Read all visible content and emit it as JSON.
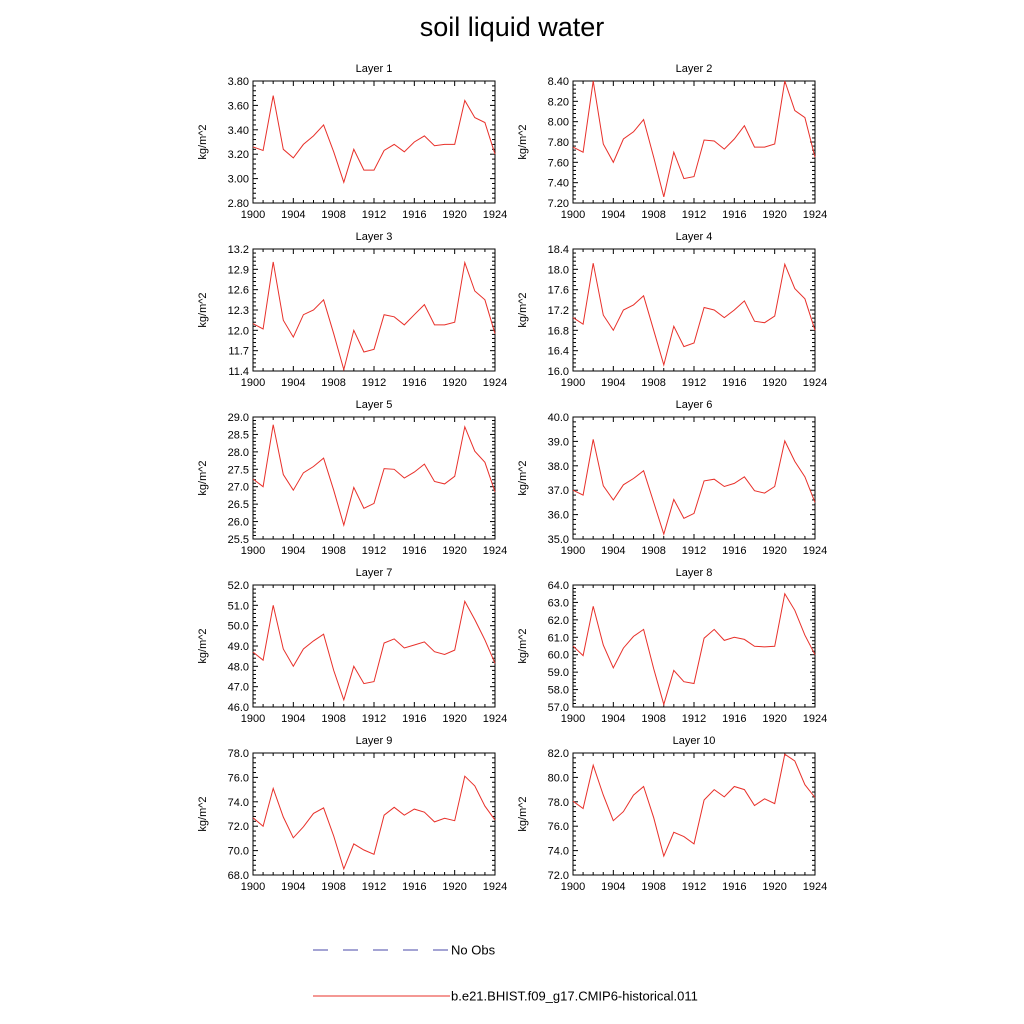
{
  "title": "soil liquid water",
  "legend": {
    "items": [
      {
        "label": "No Obs",
        "style": "dashed",
        "color": "#4a4aa8"
      },
      {
        "label": "b.e21.BHIST.f09_g17.CMIP6-historical.011",
        "style": "solid",
        "color": "#e8302a"
      }
    ]
  },
  "chart_data": [
    {
      "type": "line",
      "title": "Layer 1",
      "ylabel": "kg/m^2",
      "xlim": [
        1900,
        1924
      ],
      "x_ticks": [
        1900,
        1904,
        1908,
        1912,
        1916,
        1920,
        1924
      ],
      "ylim": [
        2.8,
        3.8
      ],
      "y_ticks": [
        "2.80",
        "3.00",
        "3.20",
        "3.40",
        "3.60",
        "3.80"
      ],
      "series": [
        {
          "name": "b.e21.BHIST.f09_g17.CMIP6-historical.011",
          "color": "#e8302a",
          "x": [
            1900,
            1901,
            1902,
            1903,
            1904,
            1905,
            1906,
            1907,
            1908,
            1909,
            1910,
            1911,
            1912,
            1913,
            1914,
            1915,
            1916,
            1917,
            1918,
            1919,
            1920,
            1921,
            1922,
            1923,
            1924
          ],
          "values": [
            3.26,
            3.23,
            3.68,
            3.24,
            3.17,
            3.28,
            3.35,
            3.44,
            3.22,
            2.97,
            3.24,
            3.07,
            3.07,
            3.23,
            3.28,
            3.22,
            3.3,
            3.35,
            3.27,
            3.28,
            3.28,
            3.64,
            3.5,
            3.46,
            3.2
          ]
        }
      ]
    },
    {
      "type": "line",
      "title": "Layer 2",
      "ylabel": "kg/m^2",
      "xlim": [
        1900,
        1924
      ],
      "x_ticks": [
        1900,
        1904,
        1908,
        1912,
        1916,
        1920,
        1924
      ],
      "ylim": [
        7.2,
        8.4
      ],
      "y_ticks": [
        "7.20",
        "7.40",
        "7.60",
        "7.80",
        "8.00",
        "8.20",
        "8.40"
      ],
      "series": [
        {
          "name": "b.e21.BHIST.f09_g17.CMIP6-historical.011",
          "color": "#e8302a",
          "x": [
            1900,
            1901,
            1902,
            1903,
            1904,
            1905,
            1906,
            1907,
            1908,
            1909,
            1910,
            1911,
            1912,
            1913,
            1914,
            1915,
            1916,
            1917,
            1918,
            1919,
            1920,
            1921,
            1922,
            1923,
            1924
          ],
          "values": [
            7.75,
            7.7,
            8.4,
            7.78,
            7.6,
            7.83,
            7.9,
            8.02,
            7.65,
            7.26,
            7.7,
            7.44,
            7.46,
            7.82,
            7.81,
            7.73,
            7.83,
            7.96,
            7.75,
            7.75,
            7.78,
            8.4,
            8.11,
            8.04,
            7.65
          ]
        }
      ]
    },
    {
      "type": "line",
      "title": "Layer 3",
      "ylabel": "kg/m^2",
      "xlim": [
        1900,
        1924
      ],
      "x_ticks": [
        1900,
        1904,
        1908,
        1912,
        1916,
        1920,
        1924
      ],
      "ylim": [
        11.4,
        13.2
      ],
      "y_ticks": [
        "11.4",
        "11.7",
        "12.0",
        "12.3",
        "12.6",
        "12.9",
        "13.2"
      ],
      "series": [
        {
          "name": "b.e21.BHIST.f09_g17.CMIP6-historical.011",
          "color": "#e8302a",
          "x": [
            1900,
            1901,
            1902,
            1903,
            1904,
            1905,
            1906,
            1907,
            1908,
            1909,
            1910,
            1911,
            1912,
            1913,
            1914,
            1915,
            1916,
            1917,
            1918,
            1919,
            1920,
            1921,
            1922,
            1923,
            1924
          ],
          "values": [
            12.1,
            12.02,
            13.01,
            12.15,
            11.9,
            12.23,
            12.3,
            12.45,
            11.95,
            11.42,
            12.0,
            11.68,
            11.72,
            12.23,
            12.2,
            12.08,
            12.23,
            12.38,
            12.08,
            12.08,
            12.12,
            13.0,
            12.58,
            12.45,
            11.95
          ]
        }
      ]
    },
    {
      "type": "line",
      "title": "Layer 4",
      "ylabel": "kg/m^2",
      "xlim": [
        1900,
        1924
      ],
      "x_ticks": [
        1900,
        1904,
        1908,
        1912,
        1916,
        1920,
        1924
      ],
      "ylim": [
        16.0,
        18.4
      ],
      "y_ticks": [
        "16.0",
        "16.4",
        "16.8",
        "17.2",
        "17.6",
        "18.0",
        "18.4"
      ],
      "series": [
        {
          "name": "b.e21.BHIST.f09_g17.CMIP6-historical.011",
          "color": "#e8302a",
          "x": [
            1900,
            1901,
            1902,
            1903,
            1904,
            1905,
            1906,
            1907,
            1908,
            1909,
            1910,
            1911,
            1912,
            1913,
            1914,
            1915,
            1916,
            1917,
            1918,
            1919,
            1920,
            1921,
            1922,
            1923,
            1924
          ],
          "values": [
            17.05,
            16.92,
            18.12,
            17.1,
            16.8,
            17.2,
            17.3,
            17.48,
            16.8,
            16.12,
            16.88,
            16.48,
            16.55,
            17.25,
            17.2,
            17.05,
            17.2,
            17.38,
            16.98,
            16.95,
            17.08,
            18.1,
            17.62,
            17.42,
            16.8
          ]
        }
      ]
    },
    {
      "type": "line",
      "title": "Layer 5",
      "ylabel": "kg/m^2",
      "xlim": [
        1900,
        1924
      ],
      "x_ticks": [
        1900,
        1904,
        1908,
        1912,
        1916,
        1920,
        1924
      ],
      "ylim": [
        25.5,
        29.0
      ],
      "y_ticks": [
        "25.5",
        "26.0",
        "26.5",
        "27.0",
        "27.5",
        "28.0",
        "28.5",
        "29.0"
      ],
      "series": [
        {
          "name": "b.e21.BHIST.f09_g17.CMIP6-historical.011",
          "color": "#e8302a",
          "x": [
            1900,
            1901,
            1902,
            1903,
            1904,
            1905,
            1906,
            1907,
            1908,
            1909,
            1910,
            1911,
            1912,
            1913,
            1914,
            1915,
            1916,
            1917,
            1918,
            1919,
            1920,
            1921,
            1922,
            1923,
            1924
          ],
          "values": [
            27.22,
            27.0,
            28.78,
            27.35,
            26.9,
            27.4,
            27.58,
            27.82,
            26.9,
            25.9,
            26.98,
            26.38,
            26.52,
            27.52,
            27.5,
            27.25,
            27.42,
            27.65,
            27.15,
            27.08,
            27.3,
            28.72,
            28.02,
            27.7,
            26.85
          ]
        }
      ]
    },
    {
      "type": "line",
      "title": "Layer 6",
      "ylabel": "kg/m^2",
      "xlim": [
        1900,
        1924
      ],
      "x_ticks": [
        1900,
        1904,
        1908,
        1912,
        1916,
        1920,
        1924
      ],
      "ylim": [
        35.0,
        40.0
      ],
      "y_ticks": [
        "35.0",
        "36.0",
        "37.0",
        "38.0",
        "39.0",
        "40.0"
      ],
      "series": [
        {
          "name": "b.e21.BHIST.f09_g17.CMIP6-historical.011",
          "color": "#e8302a",
          "x": [
            1900,
            1901,
            1902,
            1903,
            1904,
            1905,
            1906,
            1907,
            1908,
            1909,
            1910,
            1911,
            1912,
            1913,
            1914,
            1915,
            1916,
            1917,
            1918,
            1919,
            1920,
            1921,
            1922,
            1923,
            1924
          ],
          "values": [
            37.0,
            36.8,
            39.08,
            37.18,
            36.6,
            37.22,
            37.48,
            37.8,
            36.5,
            35.2,
            36.62,
            35.85,
            36.05,
            37.38,
            37.45,
            37.15,
            37.28,
            37.55,
            36.98,
            36.88,
            37.15,
            39.02,
            38.18,
            37.55,
            36.5
          ]
        }
      ]
    },
    {
      "type": "line",
      "title": "Layer 7",
      "ylabel": "kg/m^2",
      "xlim": [
        1900,
        1924
      ],
      "x_ticks": [
        1900,
        1904,
        1908,
        1912,
        1916,
        1920,
        1924
      ],
      "ylim": [
        46.0,
        52.0
      ],
      "y_ticks": [
        "46.0",
        "47.0",
        "48.0",
        "49.0",
        "50.0",
        "51.0",
        "52.0"
      ],
      "series": [
        {
          "name": "b.e21.BHIST.f09_g17.CMIP6-historical.011",
          "color": "#e8302a",
          "x": [
            1900,
            1901,
            1902,
            1903,
            1904,
            1905,
            1906,
            1907,
            1908,
            1909,
            1910,
            1911,
            1912,
            1913,
            1914,
            1915,
            1916,
            1917,
            1918,
            1919,
            1920,
            1921,
            1922,
            1923,
            1924
          ],
          "values": [
            48.7,
            48.3,
            51.0,
            48.85,
            48.0,
            48.85,
            49.25,
            49.58,
            47.8,
            46.35,
            48.0,
            47.15,
            47.25,
            49.15,
            49.35,
            48.9,
            49.05,
            49.2,
            48.72,
            48.58,
            48.8,
            51.2,
            50.3,
            49.3,
            48.15
          ]
        }
      ]
    },
    {
      "type": "line",
      "title": "Layer 8",
      "ylabel": "kg/m^2",
      "xlim": [
        1900,
        1924
      ],
      "x_ticks": [
        1900,
        1904,
        1908,
        1912,
        1916,
        1920,
        1924
      ],
      "ylim": [
        57.0,
        64.0
      ],
      "y_ticks": [
        "57.0",
        "58.0",
        "59.0",
        "60.0",
        "61.0",
        "62.0",
        "63.0",
        "64.0"
      ],
      "series": [
        {
          "name": "b.e21.BHIST.f09_g17.CMIP6-historical.011",
          "color": "#e8302a",
          "x": [
            1900,
            1901,
            1902,
            1903,
            1904,
            1905,
            1906,
            1907,
            1908,
            1909,
            1910,
            1911,
            1912,
            1913,
            1914,
            1915,
            1916,
            1917,
            1918,
            1919,
            1920,
            1921,
            1922,
            1923,
            1924
          ],
          "values": [
            60.5,
            59.95,
            62.78,
            60.55,
            59.25,
            60.38,
            61.05,
            61.45,
            59.2,
            57.15,
            59.1,
            58.45,
            58.35,
            60.95,
            61.45,
            60.82,
            61.0,
            60.88,
            60.48,
            60.45,
            60.48,
            63.5,
            62.55,
            61.12,
            60.0
          ]
        }
      ]
    },
    {
      "type": "line",
      "title": "Layer 9",
      "ylabel": "kg/m^2",
      "xlim": [
        1900,
        1924
      ],
      "x_ticks": [
        1900,
        1904,
        1908,
        1912,
        1916,
        1920,
        1924
      ],
      "ylim": [
        68.0,
        78.0
      ],
      "y_ticks": [
        "68.0",
        "70.0",
        "72.0",
        "74.0",
        "76.0",
        "78.0"
      ],
      "series": [
        {
          "name": "b.e21.BHIST.f09_g17.CMIP6-historical.011",
          "color": "#e8302a",
          "x": [
            1900,
            1901,
            1902,
            1903,
            1904,
            1905,
            1906,
            1907,
            1908,
            1909,
            1910,
            1911,
            1912,
            1913,
            1914,
            1915,
            1916,
            1917,
            1918,
            1919,
            1920,
            1921,
            1922,
            1923,
            1924
          ],
          "values": [
            72.7,
            72.0,
            75.1,
            72.75,
            71.05,
            71.95,
            73.05,
            73.5,
            71.2,
            68.5,
            70.55,
            70.05,
            69.7,
            72.9,
            73.55,
            72.9,
            73.4,
            73.15,
            72.35,
            72.65,
            72.45,
            76.1,
            75.3,
            73.65,
            72.5
          ]
        }
      ]
    },
    {
      "type": "line",
      "title": "Layer 10",
      "ylabel": "kg/m^2",
      "xlim": [
        1900,
        1924
      ],
      "x_ticks": [
        1900,
        1904,
        1908,
        1912,
        1916,
        1920,
        1924
      ],
      "ylim": [
        72.0,
        82.0
      ],
      "y_ticks": [
        "72.0",
        "74.0",
        "76.0",
        "78.0",
        "80.0",
        "82.0"
      ],
      "series": [
        {
          "name": "b.e21.BHIST.f09_g17.CMIP6-historical.011",
          "color": "#e8302a",
          "x": [
            1900,
            1901,
            1902,
            1903,
            1904,
            1905,
            1906,
            1907,
            1908,
            1909,
            1910,
            1911,
            1912,
            1913,
            1914,
            1915,
            1916,
            1917,
            1918,
            1919,
            1920,
            1921,
            1922,
            1923,
            1924
          ],
          "values": [
            78.05,
            77.45,
            81.0,
            78.55,
            76.45,
            77.2,
            78.55,
            79.25,
            76.7,
            73.55,
            75.5,
            75.15,
            74.55,
            78.15,
            79.0,
            78.4,
            79.25,
            79.0,
            77.7,
            78.25,
            77.85,
            81.9,
            81.35,
            79.4,
            78.35
          ]
        }
      ]
    }
  ]
}
